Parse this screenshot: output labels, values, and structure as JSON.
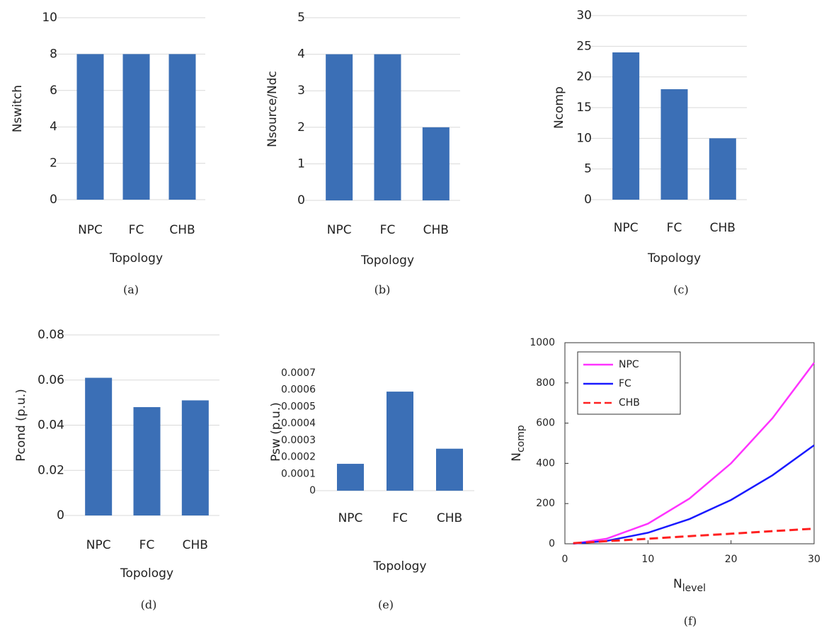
{
  "chart_data": [
    {
      "type": "bar",
      "caption": "(a)",
      "y_label": "Nswitch",
      "x_label": "Topology",
      "categories": [
        "NPC",
        "FC",
        "CHB"
      ],
      "values": [
        8,
        8,
        8
      ],
      "color": "#3b6fb6",
      "ylim": [
        0,
        10
      ],
      "yticks": [
        0,
        2,
        4,
        6,
        8,
        10
      ],
      "grid": true
    },
    {
      "type": "bar",
      "caption": "(b)",
      "y_label": "Nsource/Ndc",
      "x_label": "Topology",
      "categories": [
        "NPC",
        "FC",
        "CHB"
      ],
      "values": [
        4,
        4,
        2
      ],
      "color": "#3b6fb6",
      "ylim": [
        0,
        5
      ],
      "yticks": [
        0,
        1,
        2,
        3,
        4,
        5
      ],
      "grid": true
    },
    {
      "type": "bar",
      "caption": "(c)",
      "y_label": "Ncomp",
      "x_label": "Topology",
      "categories": [
        "NPC",
        "FC",
        "CHB"
      ],
      "values": [
        24,
        18,
        10
      ],
      "color": "#3b6fb6",
      "ylim": [
        0,
        30
      ],
      "yticks": [
        0,
        5,
        10,
        15,
        20,
        25,
        30
      ],
      "grid": true
    },
    {
      "type": "bar",
      "caption": "(d)",
      "y_label": "Pcond (p.u.)",
      "x_label": "Topology",
      "categories": [
        "NPC",
        "FC",
        "CHB"
      ],
      "values": [
        0.061,
        0.048,
        0.051
      ],
      "color": "#3b6fb6",
      "ylim": [
        0,
        0.08
      ],
      "yticks": [
        0,
        0.02,
        0.04,
        0.06,
        0.08
      ],
      "grid": true
    },
    {
      "type": "bar",
      "caption": "(e)",
      "y_label": "Psw (p.u.)",
      "x_label": "Topology",
      "categories": [
        "NPC",
        "FC",
        "CHB"
      ],
      "values": [
        0.00016,
        0.00059,
        0.00025
      ],
      "color": "#3b6fb6",
      "ylim": [
        0,
        0.0007
      ],
      "yticks": [
        0,
        0.0001,
        0.0002,
        0.0003,
        0.0004,
        0.0005,
        0.0006,
        0.0007
      ],
      "grid": false
    },
    {
      "type": "line",
      "caption": "(f)",
      "y_label": {
        "main": "N",
        "sub": "comp"
      },
      "x_label": {
        "main": "N",
        "sub": "level"
      },
      "x": [
        1,
        5,
        10,
        15,
        20,
        25,
        30
      ],
      "series": [
        {
          "name": "NPC",
          "color": "#ff33ff",
          "dash": false,
          "values": [
            1,
            25,
            100,
            225,
            400,
            625,
            900
          ]
        },
        {
          "name": "FC",
          "color": "#1a1aff",
          "dash": false,
          "values": [
            1,
            14,
            55,
            123,
            218,
            341,
            490
          ]
        },
        {
          "name": "CHB",
          "color": "#ff2020",
          "dash": true,
          "values": [
            3,
            13,
            25,
            38,
            50,
            63,
            75
          ]
        }
      ],
      "xlim": [
        0,
        30
      ],
      "xticks": [
        0,
        10,
        20,
        30
      ],
      "ylim": [
        0,
        1000
      ],
      "yticks": [
        0,
        200,
        400,
        600,
        800,
        1000
      ],
      "legend": "top-left"
    }
  ]
}
